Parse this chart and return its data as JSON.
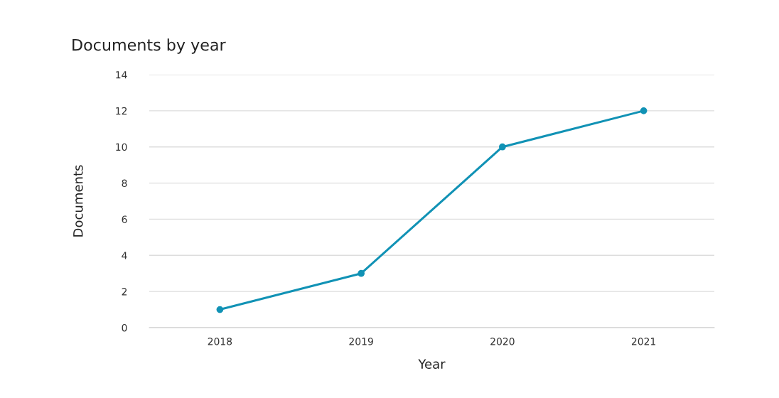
{
  "chart_data": {
    "type": "line",
    "title": "Documents by year",
    "xlabel": "Year",
    "ylabel": "Documents",
    "categories": [
      "2018",
      "2019",
      "2020",
      "2021"
    ],
    "series": [
      {
        "color": "#1192b5",
        "values": [
          1,
          3,
          10,
          12
        ]
      }
    ],
    "ylim": [
      0,
      14
    ],
    "yticks": [
      0,
      2,
      4,
      6,
      8,
      10,
      12,
      14
    ],
    "grid": "y",
    "marker": "circle",
    "line_style": "solid"
  }
}
